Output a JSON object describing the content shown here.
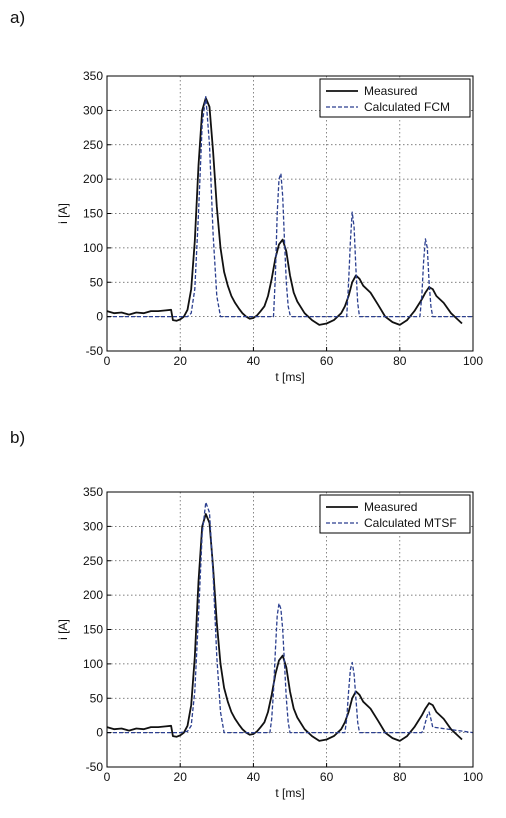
{
  "panels": [
    {
      "label": "a)"
    },
    {
      "label": "b)"
    }
  ],
  "colors": {
    "measured": "#111111",
    "calculated": "#2b3f8f",
    "axis": "#000000"
  },
  "chart_data": [
    {
      "type": "line",
      "title": "",
      "xlabel": "t [ms]",
      "ylabel": "i [A]",
      "xlim": [
        0,
        100
      ],
      "ylim": [
        -50,
        350
      ],
      "xticks": [
        0,
        20,
        40,
        60,
        80,
        100
      ],
      "yticks": [
        -50,
        0,
        50,
        100,
        150,
        200,
        250,
        300,
        350
      ],
      "grid": true,
      "legend_position": "top-right",
      "series": [
        {
          "name": "Measured",
          "style": "solid",
          "x": [
            0,
            2,
            4,
            6,
            8,
            10,
            12,
            14,
            16,
            17.5,
            18,
            19,
            20,
            21,
            22,
            23,
            24,
            25,
            26,
            27,
            28,
            29,
            30,
            31,
            32,
            33,
            34,
            35,
            36,
            37,
            38,
            39,
            40,
            41,
            42,
            43,
            44,
            45,
            46,
            47,
            48,
            49,
            50,
            51,
            52,
            54,
            56,
            58,
            60,
            62,
            64,
            65,
            66,
            67,
            68,
            69,
            70,
            72,
            74,
            76,
            78,
            80,
            82,
            84,
            86,
            87,
            88,
            89,
            90,
            92,
            94,
            96,
            97
          ],
          "y": [
            8,
            5,
            6,
            3,
            6,
            5,
            8,
            8,
            9,
            10,
            -5,
            -6,
            -4,
            0,
            10,
            40,
            110,
            220,
            300,
            318,
            305,
            240,
            160,
            100,
            65,
            45,
            30,
            20,
            12,
            5,
            0,
            -3,
            -2,
            2,
            8,
            15,
            30,
            55,
            85,
            105,
            112,
            95,
            60,
            35,
            22,
            5,
            -5,
            -12,
            -10,
            -5,
            5,
            15,
            30,
            50,
            60,
            55,
            45,
            35,
            18,
            0,
            -8,
            -12,
            -5,
            8,
            25,
            35,
            43,
            40,
            30,
            20,
            5,
            -5,
            -10
          ]
        },
        {
          "name": "Calculated FCM",
          "style": "dashed",
          "x": [
            0,
            22,
            23,
            24,
            25,
            26,
            27,
            28,
            29,
            30,
            31,
            45.5,
            46,
            46.5,
            47,
            47.5,
            48,
            48.5,
            49,
            49.5,
            50,
            50.5,
            65.5,
            66,
            66.5,
            67,
            67.5,
            68,
            68.5,
            69,
            85.5,
            86,
            86.5,
            87,
            87.5,
            88,
            88.5,
            89,
            100
          ],
          "y": [
            0,
            0,
            5,
            40,
            150,
            280,
            320,
            250,
            120,
            30,
            0,
            0,
            60,
            150,
            200,
            208,
            175,
            110,
            50,
            15,
            3,
            0,
            0,
            50,
            110,
            152,
            130,
            70,
            20,
            0,
            0,
            30,
            80,
            113,
            100,
            50,
            15,
            0,
            0
          ]
        }
      ]
    },
    {
      "type": "line",
      "title": "",
      "xlabel": "t [ms]",
      "ylabel": "i [A]",
      "xlim": [
        0,
        100
      ],
      "ylim": [
        -50,
        350
      ],
      "xticks": [
        0,
        20,
        40,
        60,
        80,
        100
      ],
      "yticks": [
        -50,
        0,
        50,
        100,
        150,
        200,
        250,
        300,
        350
      ],
      "grid": true,
      "legend_position": "top-right",
      "series": [
        {
          "name": "Measured",
          "style": "solid",
          "x": [
            0,
            2,
            4,
            6,
            8,
            10,
            12,
            14,
            16,
            17.5,
            18,
            19,
            20,
            21,
            22,
            23,
            24,
            25,
            26,
            27,
            28,
            29,
            30,
            31,
            32,
            33,
            34,
            35,
            36,
            37,
            38,
            39,
            40,
            41,
            42,
            43,
            44,
            45,
            46,
            47,
            48,
            49,
            50,
            51,
            52,
            54,
            56,
            58,
            60,
            62,
            64,
            65,
            66,
            67,
            68,
            69,
            70,
            72,
            74,
            76,
            78,
            80,
            82,
            84,
            86,
            87,
            88,
            89,
            90,
            92,
            94,
            96,
            97
          ],
          "y": [
            8,
            5,
            6,
            3,
            6,
            5,
            8,
            8,
            9,
            10,
            -5,
            -6,
            -4,
            0,
            10,
            40,
            110,
            220,
            300,
            318,
            305,
            240,
            160,
            100,
            65,
            45,
            30,
            20,
            12,
            5,
            0,
            -3,
            -2,
            2,
            8,
            15,
            30,
            55,
            85,
            105,
            112,
            95,
            60,
            35,
            22,
            5,
            -5,
            -12,
            -10,
            -5,
            5,
            15,
            30,
            50,
            60,
            55,
            45,
            35,
            18,
            0,
            -8,
            -12,
            -5,
            8,
            25,
            35,
            43,
            40,
            30,
            20,
            5,
            -5,
            -10
          ]
        },
        {
          "name": "Calculated MTSF",
          "style": "dashed",
          "x": [
            0,
            20,
            22,
            23,
            24,
            25,
            26,
            27,
            28,
            29,
            30,
            31,
            32,
            44.5,
            45,
            45.5,
            46,
            46.5,
            47,
            47.5,
            48,
            48.5,
            49,
            49.5,
            50,
            65,
            65.5,
            66,
            66.5,
            67,
            67.5,
            68,
            68.5,
            69,
            86,
            86.5,
            87,
            87.5,
            88,
            88.5,
            89,
            100
          ],
          "y": [
            0,
            0,
            2,
            10,
            60,
            170,
            290,
            335,
            320,
            230,
            110,
            30,
            0,
            0,
            20,
            60,
            120,
            170,
            188,
            180,
            150,
            100,
            50,
            15,
            0,
            0,
            20,
            60,
            92,
            102,
            85,
            50,
            15,
            0,
            0,
            5,
            15,
            25,
            30,
            20,
            8,
            0
          ]
        }
      ]
    }
  ]
}
